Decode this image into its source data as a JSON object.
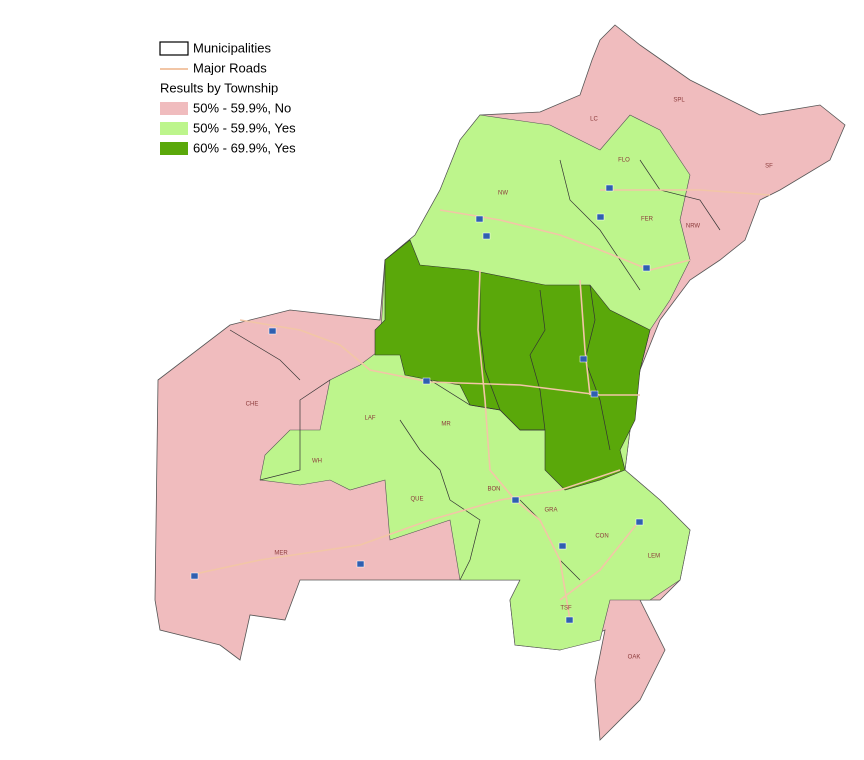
{
  "legend": {
    "municipalities": "Municipalities",
    "roads": "Major Roads",
    "title": "Results by Township",
    "items": [
      "50% - 59.9%, No",
      "50% - 59.9%, Yes",
      "60% - 69.9%, Yes"
    ]
  },
  "townships": [
    "SPL",
    "LC",
    "SF",
    "FLO",
    "NW",
    "FER",
    "NRW",
    "CHE",
    "LAF",
    "WH",
    "MR",
    "QUE",
    "BON",
    "GRA",
    "CON",
    "LEM",
    "TSF",
    "OAK",
    "MER"
  ]
}
